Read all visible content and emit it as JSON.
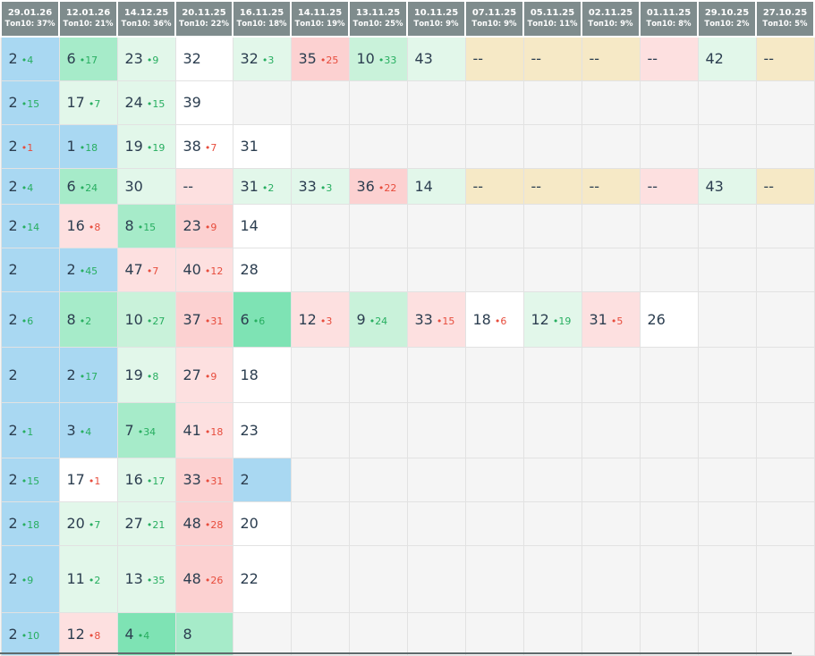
{
  "columns": [
    {
      "date": "29.01.26",
      "top": "Топ10: 37%"
    },
    {
      "date": "12.01.26",
      "top": "Топ10: 21%"
    },
    {
      "date": "14.12.25",
      "top": "Топ10: 36%"
    },
    {
      "date": "20.11.25",
      "top": "Топ10: 22%"
    },
    {
      "date": "16.11.25",
      "top": "Топ10: 18%"
    },
    {
      "date": "14.11.25",
      "top": "Топ10: 19%"
    },
    {
      "date": "13.11.25",
      "top": "Топ10: 25%"
    },
    {
      "date": "10.11.25",
      "top": "Топ10: 9%"
    },
    {
      "date": "07.11.25",
      "top": "Топ10: 9%"
    },
    {
      "date": "05.11.25",
      "top": "Топ10: 11%"
    },
    {
      "date": "02.11.25",
      "top": "Топ10: 9%"
    },
    {
      "date": "01.11.25",
      "top": "Топ10: 8%"
    },
    {
      "date": "29.10.25",
      "top": "Топ10: 2%"
    },
    {
      "date": "27.10.25",
      "top": "Топ10: 5%"
    }
  ],
  "rows": [
    [
      {
        "v": "2",
        "d": "4",
        "dir": "up",
        "bg": "first"
      },
      {
        "v": "6",
        "d": "17",
        "dir": "up",
        "bg": "g3"
      },
      {
        "v": "23",
        "d": "9",
        "dir": "up",
        "bg": "g1"
      },
      {
        "v": "32",
        "bg": "w"
      },
      {
        "v": "32",
        "d": "3",
        "dir": "up",
        "bg": "g1"
      },
      {
        "v": "35",
        "d": "25",
        "dir": "down",
        "bg": "r2"
      },
      {
        "v": "10",
        "d": "33",
        "dir": "up",
        "bg": "g2"
      },
      {
        "v": "43",
        "bg": "g1"
      },
      {
        "v": "--",
        "bg": "y"
      },
      {
        "v": "--",
        "bg": "y"
      },
      {
        "v": "--",
        "bg": "y"
      },
      {
        "v": "--",
        "bg": "r1"
      },
      {
        "v": "42",
        "bg": "g1"
      },
      {
        "v": "--",
        "bg": "y"
      }
    ],
    [
      {
        "v": "2",
        "d": "15",
        "dir": "up",
        "bg": "first"
      },
      {
        "v": "17",
        "d": "7",
        "dir": "up",
        "bg": "g1"
      },
      {
        "v": "24",
        "d": "15",
        "dir": "up",
        "bg": "g1"
      },
      {
        "v": "39",
        "bg": "w"
      },
      {
        "bg": "e"
      },
      {
        "bg": "e"
      },
      {
        "bg": "e"
      },
      {
        "bg": "e"
      },
      {
        "bg": "e"
      },
      {
        "bg": "e"
      },
      {
        "bg": "e"
      },
      {
        "bg": "e"
      },
      {
        "bg": "e"
      },
      {
        "bg": "e"
      }
    ],
    [
      {
        "v": "2",
        "d": "1",
        "dir": "down",
        "bg": "first"
      },
      {
        "v": "1",
        "d": "18",
        "dir": "up",
        "bg": "b"
      },
      {
        "v": "19",
        "d": "19",
        "dir": "up",
        "bg": "g1"
      },
      {
        "v": "38",
        "d": "7",
        "dir": "down",
        "bg": "w"
      },
      {
        "v": "31",
        "bg": "w"
      },
      {
        "bg": "e"
      },
      {
        "bg": "e"
      },
      {
        "bg": "e"
      },
      {
        "bg": "e"
      },
      {
        "bg": "e"
      },
      {
        "bg": "e"
      },
      {
        "bg": "e"
      },
      {
        "bg": "e"
      },
      {
        "bg": "e"
      }
    ],
    [
      {
        "v": "2",
        "d": "4",
        "dir": "up",
        "bg": "first"
      },
      {
        "v": "6",
        "d": "24",
        "dir": "up",
        "bg": "g3"
      },
      {
        "v": "30",
        "bg": "g1"
      },
      {
        "v": "--",
        "bg": "r1"
      },
      {
        "v": "31",
        "d": "2",
        "dir": "up",
        "bg": "g1"
      },
      {
        "v": "33",
        "d": "3",
        "dir": "up",
        "bg": "g1"
      },
      {
        "v": "36",
        "d": "22",
        "dir": "down",
        "bg": "r2"
      },
      {
        "v": "14",
        "bg": "g1"
      },
      {
        "v": "--",
        "bg": "y"
      },
      {
        "v": "--",
        "bg": "y"
      },
      {
        "v": "--",
        "bg": "y"
      },
      {
        "v": "--",
        "bg": "r1"
      },
      {
        "v": "43",
        "bg": "g1"
      },
      {
        "v": "--",
        "bg": "y"
      }
    ],
    [
      {
        "v": "2",
        "d": "14",
        "dir": "up",
        "bg": "first"
      },
      {
        "v": "16",
        "d": "8",
        "dir": "down",
        "bg": "r1"
      },
      {
        "v": "8",
        "d": "15",
        "dir": "up",
        "bg": "g3"
      },
      {
        "v": "23",
        "d": "9",
        "dir": "down",
        "bg": "r2"
      },
      {
        "v": "14",
        "bg": "w"
      },
      {
        "bg": "e"
      },
      {
        "bg": "e"
      },
      {
        "bg": "e"
      },
      {
        "bg": "e"
      },
      {
        "bg": "e"
      },
      {
        "bg": "e"
      },
      {
        "bg": "e"
      },
      {
        "bg": "e"
      },
      {
        "bg": "e"
      }
    ],
    [
      {
        "v": "2",
        "bg": "first"
      },
      {
        "v": "2",
        "d": "45",
        "dir": "up",
        "bg": "b"
      },
      {
        "v": "47",
        "d": "7",
        "dir": "down",
        "bg": "r1"
      },
      {
        "v": "40",
        "d": "12",
        "dir": "down",
        "bg": "r1"
      },
      {
        "v": "28",
        "bg": "w"
      },
      {
        "bg": "e"
      },
      {
        "bg": "e"
      },
      {
        "bg": "e"
      },
      {
        "bg": "e"
      },
      {
        "bg": "e"
      },
      {
        "bg": "e"
      },
      {
        "bg": "e"
      },
      {
        "bg": "e"
      },
      {
        "bg": "e"
      }
    ],
    [
      {
        "v": "2",
        "d": "6",
        "dir": "up",
        "bg": "first"
      },
      {
        "v": "8",
        "d": "2",
        "dir": "up",
        "bg": "g3"
      },
      {
        "v": "10",
        "d": "27",
        "dir": "up",
        "bg": "g2"
      },
      {
        "v": "37",
        "d": "31",
        "dir": "down",
        "bg": "r2"
      },
      {
        "v": "6",
        "d": "6",
        "dir": "up",
        "bg": "g4"
      },
      {
        "v": "12",
        "d": "3",
        "dir": "down",
        "bg": "r1"
      },
      {
        "v": "9",
        "d": "24",
        "dir": "up",
        "bg": "g2"
      },
      {
        "v": "33",
        "d": "15",
        "dir": "down",
        "bg": "r1"
      },
      {
        "v": "18",
        "d": "6",
        "dir": "down",
        "bg": "w"
      },
      {
        "v": "12",
        "d": "19",
        "dir": "up",
        "bg": "g1"
      },
      {
        "v": "31",
        "d": "5",
        "dir": "down",
        "bg": "r1"
      },
      {
        "v": "26",
        "bg": "w"
      },
      {
        "bg": "e"
      },
      {
        "bg": "e"
      }
    ],
    [
      {
        "v": "2",
        "bg": "first"
      },
      {
        "v": "2",
        "d": "17",
        "dir": "up",
        "bg": "b"
      },
      {
        "v": "19",
        "d": "8",
        "dir": "up",
        "bg": "g1"
      },
      {
        "v": "27",
        "d": "9",
        "dir": "down",
        "bg": "r1"
      },
      {
        "v": "18",
        "bg": "w"
      },
      {
        "bg": "e"
      },
      {
        "bg": "e"
      },
      {
        "bg": "e"
      },
      {
        "bg": "e"
      },
      {
        "bg": "e"
      },
      {
        "bg": "e"
      },
      {
        "bg": "e"
      },
      {
        "bg": "e"
      },
      {
        "bg": "e"
      }
    ],
    [
      {
        "v": "2",
        "d": "1",
        "dir": "up",
        "bg": "first"
      },
      {
        "v": "3",
        "d": "4",
        "dir": "up",
        "bg": "b"
      },
      {
        "v": "7",
        "d": "34",
        "dir": "up",
        "bg": "g3"
      },
      {
        "v": "41",
        "d": "18",
        "dir": "down",
        "bg": "r1"
      },
      {
        "v": "23",
        "bg": "w"
      },
      {
        "bg": "e"
      },
      {
        "bg": "e"
      },
      {
        "bg": "e"
      },
      {
        "bg": "e"
      },
      {
        "bg": "e"
      },
      {
        "bg": "e"
      },
      {
        "bg": "e"
      },
      {
        "bg": "e"
      },
      {
        "bg": "e"
      }
    ],
    [
      {
        "v": "2",
        "d": "15",
        "dir": "up",
        "bg": "first"
      },
      {
        "v": "17",
        "d": "1",
        "dir": "down",
        "bg": "w"
      },
      {
        "v": "16",
        "d": "17",
        "dir": "up",
        "bg": "g1"
      },
      {
        "v": "33",
        "d": "31",
        "dir": "down",
        "bg": "r2"
      },
      {
        "v": "2",
        "bg": "b"
      },
      {
        "bg": "e"
      },
      {
        "bg": "e"
      },
      {
        "bg": "e"
      },
      {
        "bg": "e"
      },
      {
        "bg": "e"
      },
      {
        "bg": "e"
      },
      {
        "bg": "e"
      },
      {
        "bg": "e"
      },
      {
        "bg": "e"
      }
    ],
    [
      {
        "v": "2",
        "d": "18",
        "dir": "up",
        "bg": "first"
      },
      {
        "v": "20",
        "d": "7",
        "dir": "up",
        "bg": "g1"
      },
      {
        "v": "27",
        "d": "21",
        "dir": "up",
        "bg": "g1"
      },
      {
        "v": "48",
        "d": "28",
        "dir": "down",
        "bg": "r2"
      },
      {
        "v": "20",
        "bg": "w"
      },
      {
        "bg": "e"
      },
      {
        "bg": "e"
      },
      {
        "bg": "e"
      },
      {
        "bg": "e"
      },
      {
        "bg": "e"
      },
      {
        "bg": "e"
      },
      {
        "bg": "e"
      },
      {
        "bg": "e"
      },
      {
        "bg": "e"
      }
    ],
    [
      {
        "v": "2",
        "d": "9",
        "dir": "up",
        "bg": "first"
      },
      {
        "v": "11",
        "d": "2",
        "dir": "up",
        "bg": "g1"
      },
      {
        "v": "13",
        "d": "35",
        "dir": "up",
        "bg": "g1"
      },
      {
        "v": "48",
        "d": "26",
        "dir": "down",
        "bg": "r2"
      },
      {
        "v": "22",
        "bg": "w"
      },
      {
        "bg": "e"
      },
      {
        "bg": "e"
      },
      {
        "bg": "e"
      },
      {
        "bg": "e"
      },
      {
        "bg": "e"
      },
      {
        "bg": "e"
      },
      {
        "bg": "e"
      },
      {
        "bg": "e"
      },
      {
        "bg": "e"
      }
    ],
    [
      {
        "v": "2",
        "d": "10",
        "dir": "up",
        "bg": "first"
      },
      {
        "v": "12",
        "d": "8",
        "dir": "down",
        "bg": "r1"
      },
      {
        "v": "4",
        "d": "4",
        "dir": "up",
        "bg": "g4"
      },
      {
        "v": "8",
        "bg": "g3"
      },
      {
        "bg": "e"
      },
      {
        "bg": "e"
      },
      {
        "bg": "e"
      },
      {
        "bg": "e"
      },
      {
        "bg": "e"
      },
      {
        "bg": "e"
      },
      {
        "bg": "e"
      },
      {
        "bg": "e"
      },
      {
        "bg": "e"
      },
      {
        "bg": "e"
      }
    ]
  ]
}
